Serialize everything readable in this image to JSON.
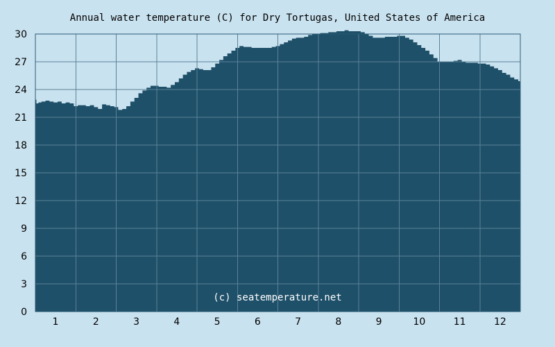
{
  "page": {
    "background_color": "#c9e2ef"
  },
  "chart_data": {
    "type": "area",
    "title": "Annual water temperature (C) for Dry Tortugas, United States of America",
    "watermark": "(c) seatemperature.net",
    "xlabel": "",
    "ylabel": "",
    "ylim": [
      0,
      30
    ],
    "xlim": [
      0.5,
      12.5
    ],
    "grid": true,
    "legend": "none",
    "x_ticks": [
      "1",
      "2",
      "3",
      "4",
      "5",
      "6",
      "7",
      "8",
      "9",
      "10",
      "11",
      "12"
    ],
    "y_ticks": [
      "0",
      "3",
      "6",
      "9",
      "12",
      "15",
      "18",
      "21",
      "24",
      "27",
      "30"
    ],
    "colors": {
      "fill": "#1f5069",
      "grid": "#5a8298",
      "axis": "#2a5a74"
    },
    "series": [
      {
        "x": [
          0.5,
          0.55,
          0.6,
          0.7,
          0.8,
          0.9,
          1.0,
          1.1,
          1.2,
          1.3,
          1.4,
          1.5,
          1.6,
          1.7,
          1.8,
          1.9,
          2.0,
          2.1,
          2.2,
          2.3,
          2.4,
          2.5,
          2.6,
          2.7,
          2.8,
          2.9,
          3.0,
          3.1,
          3.2,
          3.3,
          3.4,
          3.5,
          3.6,
          3.7,
          3.8,
          3.9,
          4.0,
          4.1,
          4.2,
          4.3,
          4.4,
          4.5,
          4.6,
          4.7,
          4.8,
          4.9,
          5.0,
          5.1,
          5.2,
          5.3,
          5.4,
          5.5,
          5.6,
          5.7,
          5.8,
          5.9,
          6.0,
          6.1,
          6.2,
          6.3,
          6.4,
          6.5,
          6.6,
          6.7,
          6.8,
          6.9,
          7.0,
          7.1,
          7.2,
          7.3,
          7.4,
          7.5,
          7.6,
          7.7,
          7.8,
          7.9,
          8.0,
          8.1,
          8.2,
          8.3,
          8.4,
          8.5,
          8.6,
          8.7,
          8.8,
          8.9,
          9.0,
          9.1,
          9.2,
          9.3,
          9.4,
          9.5,
          9.6,
          9.7,
          9.8,
          9.9,
          10.0,
          10.1,
          10.2,
          10.3,
          10.4,
          10.5,
          10.6,
          10.7,
          10.8,
          10.9,
          11.0,
          11.1,
          11.2,
          11.3,
          11.4,
          11.5,
          11.6,
          11.7,
          11.8,
          11.9,
          12.0,
          12.1,
          12.2,
          12.3,
          12.4,
          12.5
        ],
        "values": [
          22.9,
          22.5,
          22.6,
          22.7,
          22.8,
          22.7,
          22.6,
          22.7,
          22.5,
          22.6,
          22.5,
          22.2,
          22.3,
          22.3,
          22.2,
          22.3,
          22.1,
          21.9,
          22.4,
          22.3,
          22.2,
          22.1,
          21.8,
          21.9,
          22.2,
          22.7,
          23.1,
          23.6,
          23.9,
          24.2,
          24.4,
          24.4,
          24.3,
          24.3,
          24.2,
          24.5,
          24.8,
          25.2,
          25.6,
          25.9,
          26.1,
          26.3,
          26.2,
          26.1,
          26.1,
          26.4,
          26.8,
          27.2,
          27.6,
          27.9,
          28.2,
          28.5,
          28.7,
          28.6,
          28.6,
          28.5,
          28.5,
          28.5,
          28.5,
          28.5,
          28.6,
          28.7,
          28.9,
          29.1,
          29.3,
          29.5,
          29.6,
          29.6,
          29.7,
          29.9,
          30.0,
          30.0,
          30.1,
          30.1,
          30.2,
          30.2,
          30.3,
          30.3,
          30.4,
          30.3,
          30.3,
          30.3,
          30.2,
          30.0,
          29.8,
          29.6,
          29.6,
          29.6,
          29.7,
          29.7,
          29.7,
          29.8,
          29.8,
          29.6,
          29.4,
          29.1,
          28.8,
          28.5,
          28.2,
          27.8,
          27.4,
          27.0,
          27.0,
          27.0,
          27.0,
          27.1,
          27.2,
          27.0,
          26.9,
          26.9,
          26.9,
          26.8,
          26.8,
          26.7,
          26.5,
          26.3,
          26.1,
          25.8,
          25.6,
          25.3,
          25.1,
          24.9
        ]
      }
    ]
  }
}
